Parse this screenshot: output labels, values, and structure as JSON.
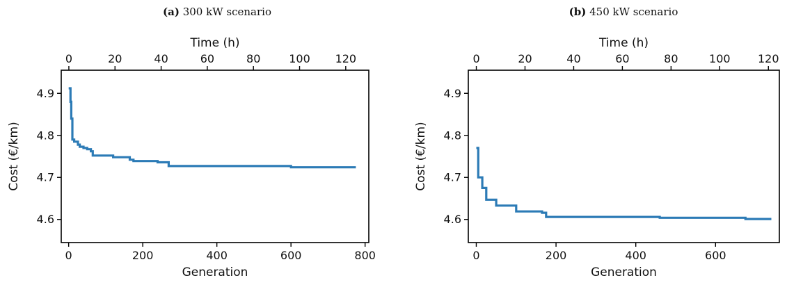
{
  "chart_data": [
    {
      "type": "line",
      "title_prefix": "(a)",
      "title_text": "300 kW scenario",
      "xlabel": "Generation",
      "x2label": "Time (h)",
      "ylabel": "Cost (€/km)",
      "xlim": [
        -20,
        810
      ],
      "ylim": [
        4.545,
        4.955
      ],
      "x2lim": [
        -3.3,
        130
      ],
      "xticks": [
        0,
        200,
        400,
        600,
        800
      ],
      "x2ticks": [
        0,
        20,
        40,
        60,
        80,
        100,
        120
      ],
      "yticks": [
        4.6,
        4.7,
        4.8,
        4.9
      ],
      "color": "#2c7bb6",
      "grid": false,
      "series": [
        {
          "x": [
            0,
            5,
            5,
            7,
            7,
            10,
            10,
            15,
            15,
            25,
            25,
            30,
            30,
            40,
            40,
            50,
            50,
            60,
            60,
            65,
            65,
            70,
            70,
            120,
            120,
            165,
            165,
            175,
            175,
            240,
            240,
            270,
            270,
            600,
            600,
            775
          ],
          "y": [
            4.912,
            4.912,
            4.88,
            4.88,
            4.84,
            4.84,
            4.79,
            4.79,
            4.785,
            4.785,
            4.778,
            4.778,
            4.773,
            4.773,
            4.77,
            4.77,
            4.767,
            4.767,
            4.762,
            4.762,
            4.752,
            4.752,
            4.752,
            4.752,
            4.748,
            4.748,
            4.742,
            4.742,
            4.739,
            4.739,
            4.736,
            4.736,
            4.727,
            4.727,
            4.724,
            4.724
          ]
        }
      ]
    },
    {
      "type": "line",
      "title_prefix": "(b)",
      "title_text": "450 kW scenario",
      "xlabel": "Generation",
      "x2label": "Time (h)",
      "ylabel": "Cost (€/km)",
      "xlim": [
        -20,
        760
      ],
      "ylim": [
        4.545,
        4.955
      ],
      "x2lim": [
        -3.3,
        124.5
      ],
      "xticks": [
        0,
        200,
        400,
        600
      ],
      "x2ticks": [
        0,
        20,
        40,
        60,
        80,
        100,
        120
      ],
      "yticks": [
        4.6,
        4.7,
        4.8,
        4.9
      ],
      "color": "#2c7bb6",
      "grid": false,
      "series": [
        {
          "x": [
            0,
            5,
            5,
            15,
            15,
            25,
            25,
            50,
            50,
            100,
            100,
            165,
            165,
            175,
            175,
            460,
            460,
            675,
            675,
            740
          ],
          "y": [
            4.77,
            4.77,
            4.7,
            4.7,
            4.675,
            4.675,
            4.647,
            4.647,
            4.633,
            4.633,
            4.619,
            4.619,
            4.616,
            4.616,
            4.606,
            4.606,
            4.604,
            4.604,
            4.601,
            4.601
          ]
        }
      ]
    }
  ]
}
